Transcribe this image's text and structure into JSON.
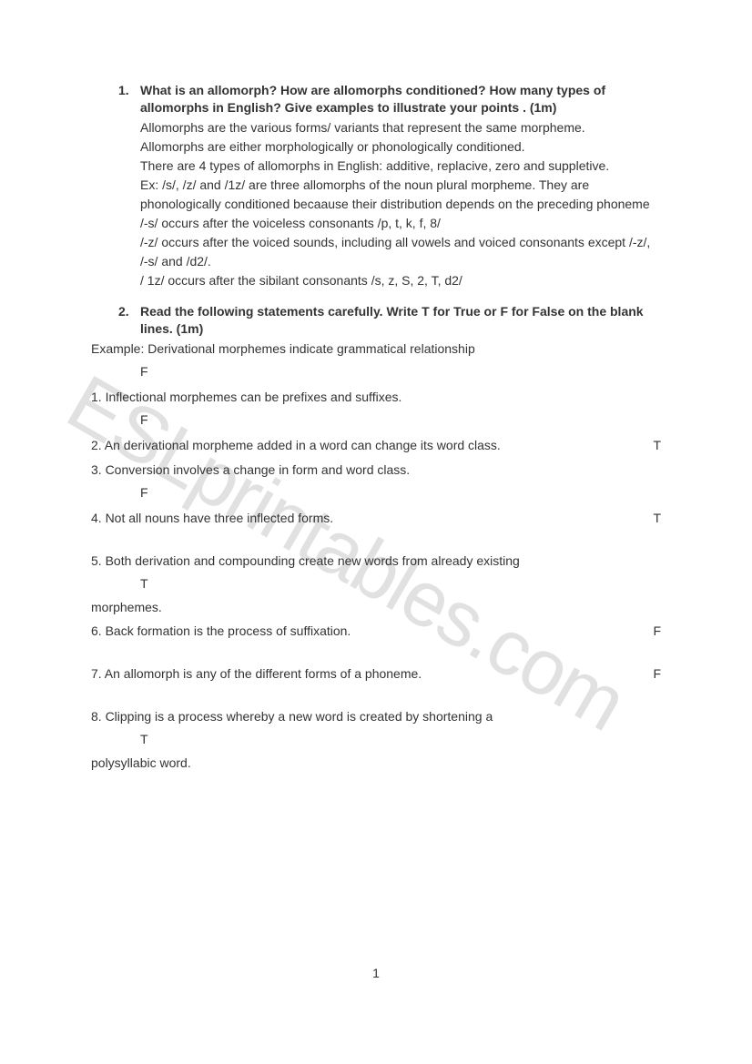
{
  "watermark": {
    "text": "ESLprintables.com",
    "color": "rgba(120,120,120,0.22)",
    "fontsize": 86,
    "rotation_deg": 30
  },
  "page_number": "1",
  "question1": {
    "number": "1.",
    "title": "What is an allomorph? How are allomorphs conditioned? How many types of allomorphs in English? Give examples to illustrate your points . (1m)",
    "body": [
      "Allomorphs are the various forms/ variants that represent the same morpheme.",
      "Allomorphs are either morphologically or phonologically conditioned.",
      "There are 4 types of allomorphs in English: additive, replacive, zero and suppletive.",
      "Ex: /s/, /z/ and /1z/ are three allomorphs of the noun plural morpheme. They are phonologically conditioned becaause their distribution depends on the preceding phoneme",
      "/-s/ occurs after the voiceless consonants /p, t, k, f, 8/",
      "/-z/ occurs after the voiced sounds, including all vowels and voiced consonants except /-z/, /-s/ and /d2/.",
      "/ 1z/ occurs after the sibilant consonants /s, z, S, 2, T, d2/"
    ]
  },
  "question2": {
    "number": "2.",
    "title": "Read the following statements carefully. Write T for True or F for False on the blank lines. (1m)",
    "example_label": "Example: Derivational morphemes indicate grammatical relationship",
    "example_answer": "F",
    "items": [
      {
        "n": "1.",
        "stmt": "Inflectional morphemes can be prefixes and suffixes.",
        "ans_below": "F",
        "ans_right": ""
      },
      {
        "n": "2.",
        "stmt": " An derivational morpheme added in a word can change its word class.",
        "ans_below": "",
        "ans_right": "T"
      },
      {
        "n": "3.",
        "stmt": " Conversion involves a change in form and word class.",
        "ans_below": "F",
        "ans_right": ""
      },
      {
        "n": "4.",
        "stmt": "Not all nouns have three inflected forms.",
        "ans_below": "",
        "ans_right": "T"
      },
      {
        "n": "5.",
        "stmt": "Both derivation and compounding create new words from already existing",
        "ans_below": "T",
        "ans_right": "",
        "cont": " morphemes."
      },
      {
        "n": "6.",
        "stmt": "Back formation is the process of suffixation.",
        "ans_below": "",
        "ans_right": "F"
      },
      {
        "n": "7.",
        "stmt": "An allomorph is any of the different forms of a phoneme.",
        "ans_below": "",
        "ans_right": "F"
      },
      {
        "n": "8.",
        "stmt": "Clipping is a process whereby a new word is created by shortening a",
        "ans_below": "T",
        "ans_right": "",
        "cont": " polysyllabic word."
      }
    ]
  }
}
